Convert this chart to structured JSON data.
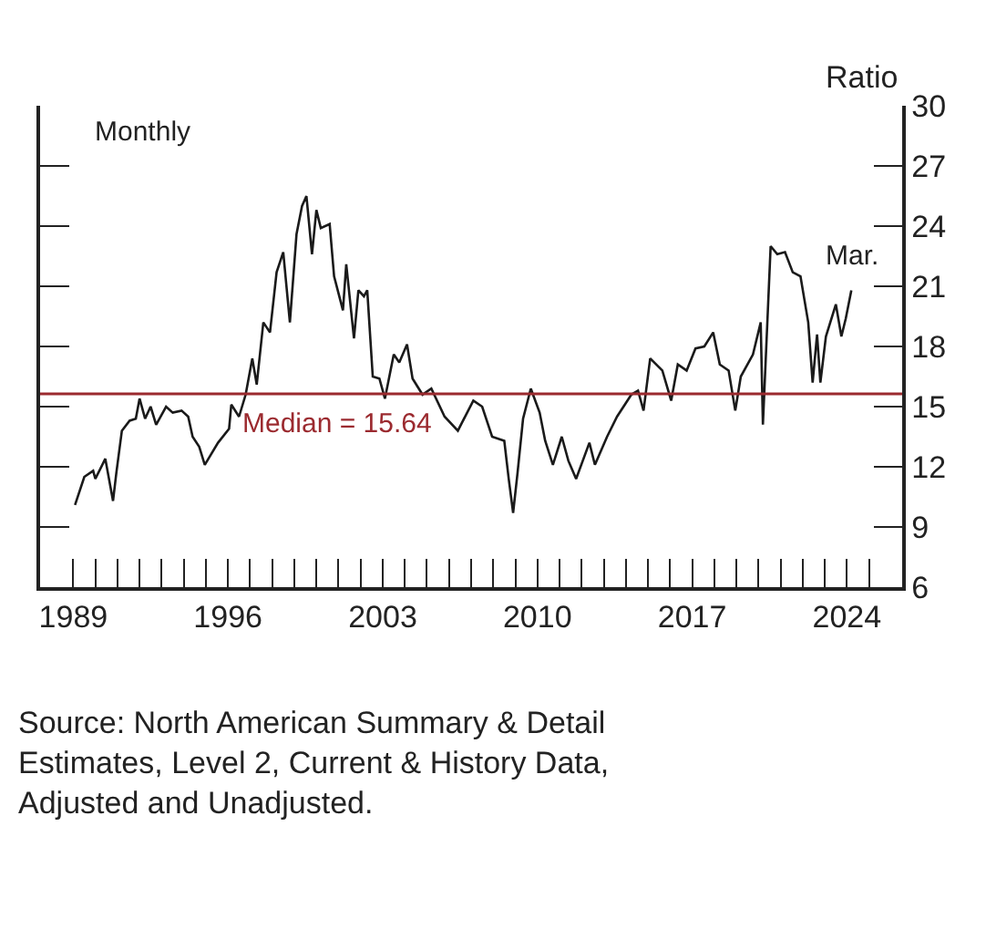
{
  "chart_data": {
    "type": "line",
    "ylabel": "Ratio",
    "annotations": [
      "Monthly",
      {
        "text": "Mar.",
        "x": 2024.2,
        "y": 20.8
      },
      "Source: North American Summary & Detail Estimates, Level 2, Current & History Data, Adjusted and Unadjusted."
    ],
    "series": [
      {
        "color": "#1a1a1a",
        "x": [
          1989.08,
          1989.5,
          1989.9,
          1990.0,
          1990.45,
          1990.8,
          1990.95,
          1991.2,
          1991.55,
          1991.83,
          1992.0,
          1992.25,
          1992.5,
          1992.75,
          1993.2,
          1993.5,
          1993.9,
          1994.2,
          1994.4,
          1994.7,
          1994.95,
          1995.55,
          1996.05,
          1996.15,
          1996.5,
          1996.8,
          1997.1,
          1997.3,
          1997.6,
          1997.9,
          1998.2,
          1998.5,
          1998.8,
          1999.1,
          1999.35,
          1999.55,
          1999.8,
          2000.0,
          2000.2,
          2000.6,
          2000.8,
          2001.2,
          2001.35,
          2001.7,
          2001.9,
          2002.15,
          2002.3,
          2002.55,
          2002.85,
          2003.1,
          2003.5,
          2003.75,
          2004.1,
          2004.35,
          2004.8,
          2005.2,
          2005.8,
          2006.4,
          2007.1,
          2007.5,
          2007.95,
          2008.5,
          2008.7,
          2008.9,
          2009.1,
          2009.35,
          2009.7,
          2010.1,
          2010.35,
          2010.7,
          2011.1,
          2011.4,
          2011.75,
          2012.35,
          2012.6,
          2013.15,
          2013.6,
          2014.25,
          2014.55,
          2014.8,
          2015.1,
          2015.65,
          2016.05,
          2016.35,
          2016.75,
          2017.15,
          2017.55,
          2017.95,
          2018.25,
          2018.65,
          2018.95,
          2019.2,
          2019.75,
          2020.1,
          2020.2,
          2020.55,
          2020.85,
          2021.2,
          2021.55,
          2021.9,
          2022.25,
          2022.45,
          2022.65,
          2022.8,
          2023.05,
          2023.5,
          2023.75,
          2023.95,
          2024.2
        ],
        "values": [
          10.1,
          11.5,
          11.8,
          11.4,
          12.4,
          10.3,
          11.7,
          13.8,
          14.3,
          14.4,
          15.4,
          14.4,
          15.0,
          14.1,
          15.0,
          14.7,
          14.8,
          14.5,
          13.5,
          13.0,
          12.1,
          13.2,
          13.9,
          15.1,
          14.5,
          15.6,
          17.4,
          16.1,
          19.2,
          18.7,
          21.7,
          22.7,
          19.2,
          23.6,
          25.0,
          25.5,
          22.6,
          24.8,
          23.9,
          24.1,
          21.5,
          19.8,
          22.1,
          18.4,
          20.8,
          20.5,
          20.8,
          16.5,
          16.4,
          15.4,
          17.6,
          17.2,
          18.1,
          16.4,
          15.6,
          15.9,
          14.5,
          13.8,
          15.3,
          15.0,
          13.5,
          13.3,
          11.4,
          9.7,
          11.7,
          14.4,
          15.9,
          14.7,
          13.3,
          12.1,
          13.5,
          12.3,
          11.4,
          13.2,
          12.1,
          13.5,
          14.5,
          15.6,
          15.8,
          14.8,
          17.4,
          16.8,
          15.3,
          17.1,
          16.8,
          17.9,
          18.0,
          18.7,
          17.1,
          16.8,
          14.8,
          16.5,
          17.6,
          19.2,
          14.1,
          23.0,
          22.6,
          22.7,
          21.7,
          21.5,
          19.2,
          16.2,
          18.6,
          16.2,
          18.5,
          20.1,
          18.5,
          19.4,
          20.8
        ]
      }
    ],
    "ref_lines": [
      {
        "axis": "y",
        "value": 15.64,
        "label": "Median = 15.64",
        "color": "#9b2a2f"
      }
    ],
    "xlim": [
      1987.5,
      2026.5
    ],
    "xticks": [
      1989,
      {
        "value": 1990,
        "label": null
      },
      {
        "value": 1991,
        "label": null
      },
      {
        "value": 1992,
        "label": null
      },
      {
        "value": 1993,
        "label": null
      },
      {
        "value": 1994,
        "label": null
      },
      {
        "value": 1995,
        "label": null
      },
      1996,
      {
        "value": 1997,
        "label": null
      },
      {
        "value": 1998,
        "label": null
      },
      {
        "value": 1999,
        "label": null
      },
      {
        "value": 2000,
        "label": null
      },
      {
        "value": 2001,
        "label": null
      },
      {
        "value": 2002,
        "label": null
      },
      2003,
      {
        "value": 2004,
        "label": null
      },
      {
        "value": 2005,
        "label": null
      },
      {
        "value": 2006,
        "label": null
      },
      {
        "value": 2007,
        "label": null
      },
      {
        "value": 2008,
        "label": null
      },
      {
        "value": 2009,
        "label": null
      },
      2010,
      {
        "value": 2011,
        "label": null
      },
      {
        "value": 2012,
        "label": null
      },
      {
        "value": 2013,
        "label": null
      },
      {
        "value": 2014,
        "label": null
      },
      {
        "value": 2015,
        "label": null
      },
      {
        "value": 2016,
        "label": null
      },
      2017,
      {
        "value": 2018,
        "label": null
      },
      {
        "value": 2019,
        "label": null
      },
      {
        "value": 2020,
        "label": null
      },
      {
        "value": 2021,
        "label": null
      },
      {
        "value": 2022,
        "label": null
      },
      {
        "value": 2023,
        "label": null
      },
      2024,
      {
        "value": 2025,
        "label": null
      }
    ],
    "ylim": [
      6,
      30
    ],
    "yticks": [
      6,
      9,
      12,
      15,
      18,
      21,
      24,
      27,
      30
    ],
    "marker": "none",
    "line_style": "solid"
  }
}
